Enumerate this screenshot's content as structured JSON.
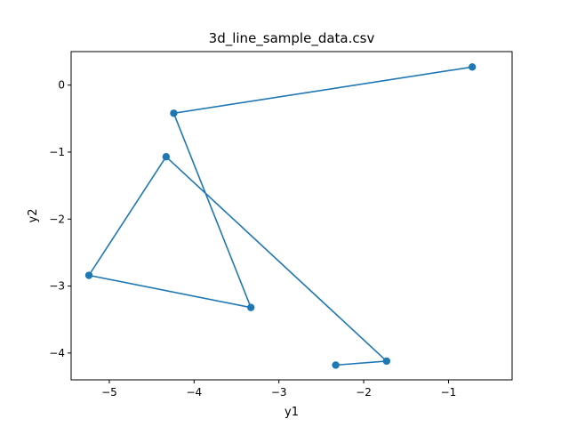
{
  "chart_data": {
    "type": "line",
    "title": "3d_line_sample_data.csv",
    "xlabel": "y1",
    "ylabel": "y2",
    "xlim": [
      -5.45,
      -0.25
    ],
    "ylim": [
      -4.4,
      0.5
    ],
    "xticks": [
      -5,
      -4,
      -3,
      -2,
      -1
    ],
    "yticks": [
      0,
      -1,
      -2,
      -3,
      -4
    ],
    "xtick_labels": [
      "−5",
      "−4",
      "−3",
      "−2",
      "−1"
    ],
    "ytick_labels": [
      "0",
      "−1",
      "−2",
      "−3",
      "−4"
    ],
    "grid": false,
    "markers": true,
    "series": [
      {
        "color": "#1f77b4",
        "x": [
          -2.33,
          -1.73,
          -4.33,
          -5.24,
          -3.33,
          -4.24,
          -0.72
        ],
        "y": [
          -4.18,
          -4.12,
          -1.07,
          -2.84,
          -3.32,
          -0.42,
          0.27
        ]
      }
    ]
  }
}
